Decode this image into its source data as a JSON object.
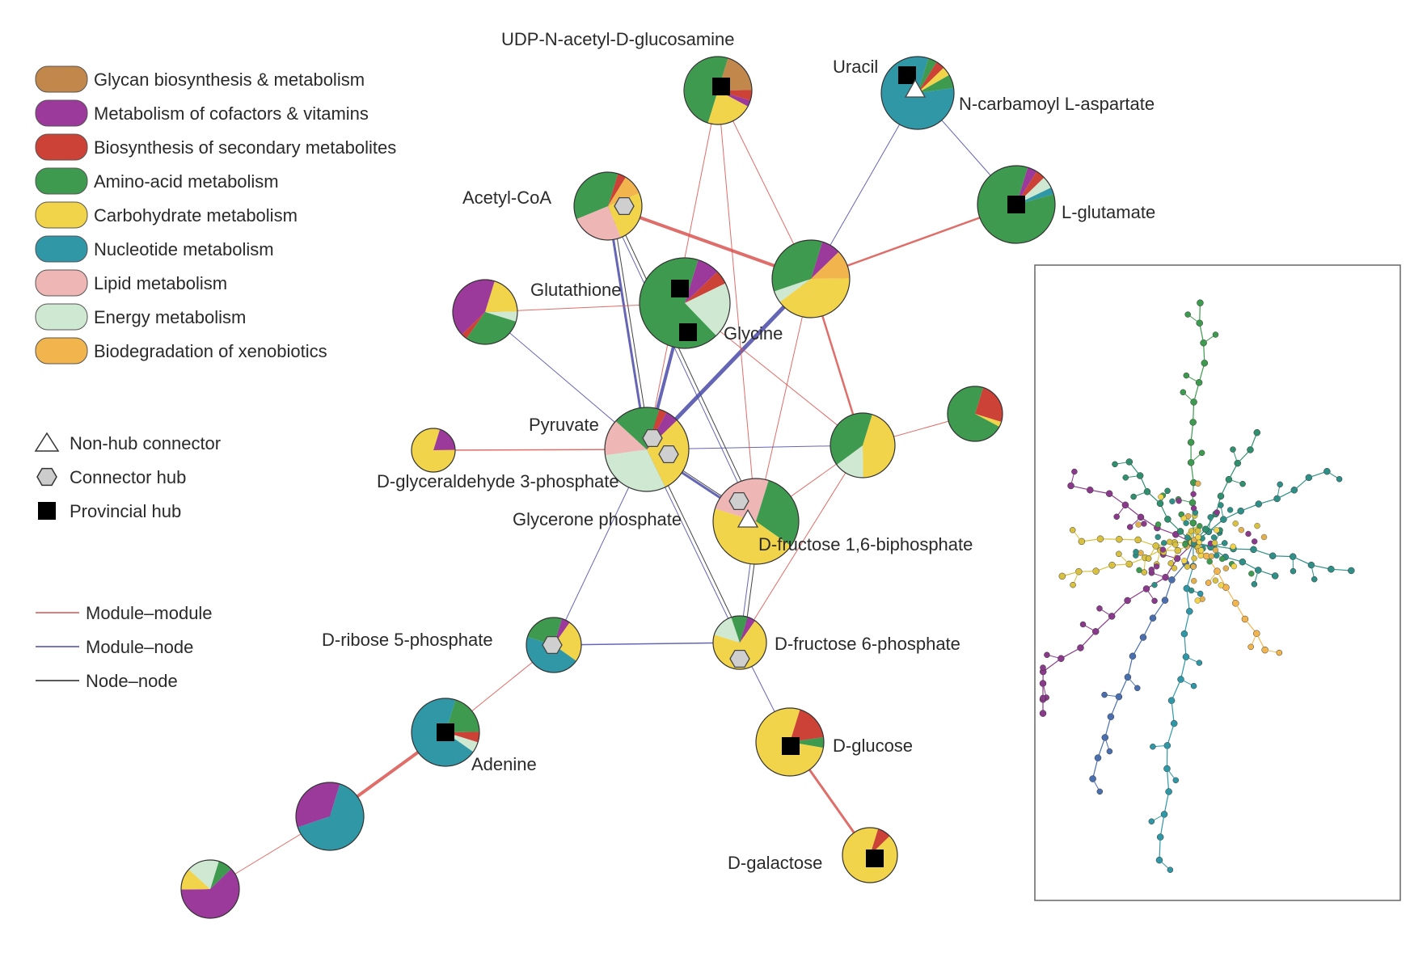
{
  "legend": {
    "categories": [
      {
        "key": "glycan",
        "label": "Glycan biosynthesis & metabolism",
        "color": "#c2874a"
      },
      {
        "key": "cofactor",
        "label": "Metabolism of cofactors & vitamins",
        "color": "#9b3a9a"
      },
      {
        "key": "secondary",
        "label": "Biosynthesis of secondary metabolites",
        "color": "#cd4236"
      },
      {
        "key": "amino",
        "label": "Amino-acid metabolism",
        "color": "#3d9a4f"
      },
      {
        "key": "carb",
        "label": "Carbohydrate metabolism",
        "color": "#f1d44a"
      },
      {
        "key": "nucleotide",
        "label": "Nucleotide metabolism",
        "color": "#2f97a6"
      },
      {
        "key": "lipid",
        "label": "Lipid metabolism",
        "color": "#eeb6b4"
      },
      {
        "key": "energy",
        "label": "Energy metabolism",
        "color": "#cfe8d1"
      },
      {
        "key": "xeno",
        "label": "Biodegradation of xenobiotics",
        "color": "#f2b44d"
      }
    ],
    "roles": [
      {
        "key": "nonhub",
        "label": "Non-hub connector",
        "icon": "triangle-icon"
      },
      {
        "key": "connector",
        "label": "Connector hub",
        "icon": "hexagon-icon"
      },
      {
        "key": "provincial",
        "label": "Provincial hub",
        "icon": "square-icon"
      }
    ],
    "edges": [
      {
        "key": "mm",
        "label": "Module–module",
        "color": "#d9534f"
      },
      {
        "key": "mn",
        "label": "Module–node",
        "color": "#4a4aa8"
      },
      {
        "key": "nn",
        "label": "Node–node",
        "color": "#222222"
      }
    ]
  },
  "labels": [
    {
      "key": "udp",
      "text": "UDP-N-acetyl-D-glucosamine"
    },
    {
      "key": "uracil",
      "text": "Uracil"
    },
    {
      "key": "ncarb",
      "text": "N-carbamoyl L-aspartate"
    },
    {
      "key": "acoa",
      "text": "Acetyl-CoA"
    },
    {
      "key": "lglu",
      "text": "L-glutamate"
    },
    {
      "key": "gsh",
      "text": "Glutathione"
    },
    {
      "key": "gly",
      "text": "Glycine"
    },
    {
      "key": "pyr",
      "text": "Pyruvate"
    },
    {
      "key": "g3p",
      "text": "D-glyceraldehyde 3-phosphate"
    },
    {
      "key": "dhap",
      "text": "Glycerone phosphate"
    },
    {
      "key": "fbp",
      "text": "D-fructose 1,6-biphosphate"
    },
    {
      "key": "r5p",
      "text": "D-ribose 5-phosphate"
    },
    {
      "key": "f6p",
      "text": "D-fructose 6-phosphate"
    },
    {
      "key": "ade",
      "text": "Adenine"
    },
    {
      "key": "glc",
      "text": "D-glucose"
    },
    {
      "key": "gal",
      "text": "D-galactose"
    }
  ],
  "nodes": [
    {
      "id": "udp",
      "role": "provincial",
      "slices": [
        [
          "glycan",
          0.2
        ],
        [
          "secondary",
          0.05
        ],
        [
          "cofactor",
          0.03
        ],
        [
          "carb",
          0.22
        ],
        [
          "amino",
          0.5
        ]
      ]
    },
    {
      "id": "uracil",
      "role": "provincial+nonhub",
      "slices": [
        [
          "amino",
          0.04
        ],
        [
          "secondary",
          0.04
        ],
        [
          "carb",
          0.04
        ],
        [
          "amino",
          0.06
        ],
        [
          "nucleotide",
          0.82
        ]
      ]
    },
    {
      "id": "lglu",
      "role": "provincial",
      "slices": [
        [
          "cofactor",
          0.04
        ],
        [
          "secondary",
          0.04
        ],
        [
          "energy",
          0.05
        ],
        [
          "nucleotide",
          0.03
        ],
        [
          "amino",
          0.84
        ]
      ]
    },
    {
      "id": "acoa",
      "role": "connector",
      "slices": [
        [
          "secondary",
          0.04
        ],
        [
          "xeno",
          0.1
        ],
        [
          "carb",
          0.25
        ],
        [
          "lipid",
          0.25
        ],
        [
          "amino",
          0.36
        ]
      ]
    },
    {
      "id": "mod_center_top",
      "role": "none",
      "slices": [
        [
          "cofactor",
          0.08
        ],
        [
          "xeno",
          0.12
        ],
        [
          "carb",
          0.4
        ],
        [
          "energy",
          0.05
        ],
        [
          "amino",
          0.35
        ]
      ]
    },
    {
      "id": "gsh",
      "role": "provincial",
      "slices": [
        [
          "cofactor",
          0.08
        ],
        [
          "secondary",
          0.05
        ],
        [
          "energy",
          0.2
        ],
        [
          "amino",
          0.67
        ]
      ]
    },
    {
      "id": "mod_left",
      "role": "none",
      "slices": [
        [
          "carb",
          0.2
        ],
        [
          "energy",
          0.05
        ],
        [
          "amino",
          0.3
        ],
        [
          "secondary",
          0.03
        ],
        [
          "cofactor",
          0.42
        ]
      ]
    },
    {
      "id": "pyr",
      "role": "connector",
      "slices": [
        [
          "secondary",
          0.03
        ],
        [
          "cofactor",
          0.05
        ],
        [
          "carb",
          0.3
        ],
        [
          "energy",
          0.3
        ],
        [
          "lipid",
          0.14
        ],
        [
          "amino",
          0.18
        ]
      ]
    },
    {
      "id": "g3p",
      "role": "none",
      "slices": [
        [
          "cofactor",
          0.2
        ],
        [
          "carb",
          0.8
        ]
      ]
    },
    {
      "id": "mod_mid_right",
      "role": "none",
      "slices": [
        [
          "carb",
          0.45
        ],
        [
          "energy",
          0.15
        ],
        [
          "amino",
          0.4
        ]
      ]
    },
    {
      "id": "mod_far_right",
      "role": "none",
      "slices": [
        [
          "secondary",
          0.25
        ],
        [
          "carb",
          0.03
        ],
        [
          "amino",
          0.72
        ]
      ]
    },
    {
      "id": "fbp",
      "role": "connector+nonhub",
      "slices": [
        [
          "amino",
          0.3
        ],
        [
          "carb",
          0.45
        ],
        [
          "lipid",
          0.25
        ]
      ]
    },
    {
      "id": "r5p",
      "role": "connector",
      "slices": [
        [
          "cofactor",
          0.05
        ],
        [
          "carb",
          0.25
        ],
        [
          "nucleotide",
          0.45
        ],
        [
          "amino",
          0.25
        ]
      ]
    },
    {
      "id": "f6p",
      "role": "connector",
      "slices": [
        [
          "cofactor",
          0.05
        ],
        [
          "carb",
          0.7
        ],
        [
          "energy",
          0.15
        ],
        [
          "amino",
          0.1
        ]
      ]
    },
    {
      "id": "ade",
      "role": "provincial",
      "slices": [
        [
          "amino",
          0.2
        ],
        [
          "secondary",
          0.05
        ],
        [
          "energy",
          0.05
        ],
        [
          "nucleotide",
          0.7
        ]
      ]
    },
    {
      "id": "glc",
      "role": "provincial",
      "slices": [
        [
          "secondary",
          0.18
        ],
        [
          "amino",
          0.05
        ],
        [
          "carb",
          0.77
        ]
      ]
    },
    {
      "id": "gal",
      "role": "provincial",
      "slices": [
        [
          "secondary",
          0.08
        ],
        [
          "carb",
          0.92
        ]
      ]
    },
    {
      "id": "mod_nucl_big",
      "role": "none",
      "slices": [
        [
          "nucleotide",
          0.65
        ],
        [
          "cofactor",
          0.35
        ]
      ]
    },
    {
      "id": "mod_purple",
      "role": "none",
      "slices": [
        [
          "amino",
          0.08
        ],
        [
          "cofactor",
          0.62
        ],
        [
          "carb",
          0.12
        ],
        [
          "energy",
          0.18
        ]
      ]
    }
  ]
}
